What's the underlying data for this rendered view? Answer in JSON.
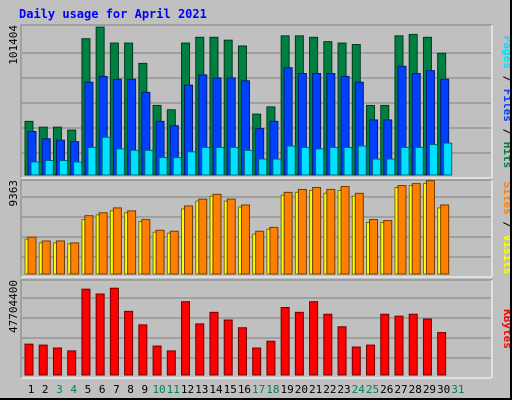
{
  "chart_data": {
    "type": "bar",
    "title": "Daily usage for April 2021",
    "categories": [
      "1",
      "2",
      "3",
      "4",
      "5",
      "6",
      "7",
      "8",
      "9",
      "10",
      "11",
      "12",
      "13",
      "14",
      "15",
      "16",
      "17",
      "18",
      "19",
      "20",
      "21",
      "22",
      "23",
      "24",
      "25",
      "26",
      "27",
      "28",
      "29",
      "30",
      "31"
    ],
    "weekend_days": [
      "3",
      "4",
      "10",
      "11",
      "17",
      "18",
      "24",
      "25",
      "31"
    ],
    "panels": [
      {
        "id": "hits",
        "ylim": [
          0,
          101404
        ],
        "tick_label": "101404",
        "right_label": [
          {
            "text": "Pages",
            "color": "#00e0ff"
          },
          {
            "text": " / ",
            "color": "#000000"
          },
          {
            "text": "Files",
            "color": "#0040ff"
          },
          {
            "text": " / ",
            "color": "#000000"
          },
          {
            "text": "Hits",
            "color": "#008040"
          }
        ],
        "series": [
          {
            "name": "Hits",
            "color": "#008040",
            "values": [
              37000,
              33000,
              33000,
              31000,
              94000,
              102000,
              91000,
              91000,
              77000,
              48000,
              45000,
              91000,
              95000,
              95000,
              93000,
              89000,
              42000,
              47000,
              96000,
              96000,
              95000,
              92000,
              91000,
              90000,
              48000,
              48000,
              96000,
              97000,
              95000,
              84000,
              null
            ]
          },
          {
            "name": "Files",
            "color": "#0040ff",
            "values": [
              30000,
              25000,
              24000,
              23000,
              64000,
              68000,
              66000,
              66000,
              57000,
              37000,
              34000,
              62000,
              69000,
              67000,
              67000,
              65000,
              32000,
              37000,
              74000,
              70000,
              70000,
              70000,
              68000,
              64000,
              38000,
              38000,
              75000,
              70000,
              72000,
              66000,
              null
            ]
          },
          {
            "name": "Pages",
            "color": "#00e0ff",
            "values": [
              9000,
              10000,
              10000,
              9000,
              19000,
              26000,
              18000,
              17000,
              17000,
              12000,
              12000,
              16000,
              19000,
              19000,
              19000,
              17000,
              11000,
              11000,
              20000,
              19000,
              18000,
              19000,
              19000,
              20000,
              11000,
              11000,
              19000,
              19000,
              21000,
              22000,
              null
            ]
          }
        ]
      },
      {
        "id": "visits",
        "ylim": [
          0,
          9363
        ],
        "tick_label": "9363",
        "right_label": [
          {
            "text": "Sites",
            "color": "#ff8000"
          },
          {
            "text": " / ",
            "color": "#000000"
          },
          {
            "text": "Visits",
            "color": "#ffff00"
          }
        ],
        "series": [
          {
            "name": "Visits",
            "color": "#ffff00",
            "values": [
              3600,
              3200,
              3200,
              3100,
              5600,
              6100,
              6500,
              6300,
              5400,
              4300,
              4200,
              6700,
              7500,
              8000,
              7500,
              6900,
              4100,
              4600,
              8100,
              8400,
              8600,
              8300,
              8600,
              8000,
              5300,
              5300,
              8900,
              9100,
              9300,
              6800,
              null
            ]
          },
          {
            "name": "Sites",
            "color": "#ff8000",
            "values": [
              3800,
              3400,
              3400,
              3200,
              6000,
              6300,
              6800,
              6500,
              5600,
              4500,
              4400,
              7000,
              7700,
              8200,
              7700,
              7100,
              4400,
              4800,
              8400,
              8700,
              8900,
              8700,
              9000,
              8300,
              5600,
              5500,
              9100,
              9300,
              9600,
              7100,
              null
            ]
          }
        ]
      },
      {
        "id": "kbytes",
        "ylim": [
          0,
          47704400
        ],
        "tick_label": "47704400",
        "right_label": [
          {
            "text": "KBytes",
            "color": "#ff0000"
          }
        ],
        "series": [
          {
            "name": "KBytes",
            "color": "#ff0000",
            "values": [
              16000000,
              15500000,
              14000000,
              12500000,
              44500000,
              42000000,
              45000000,
              33000000,
              26000000,
              15000000,
              12500000,
              38000000,
              26500000,
              32500000,
              28500000,
              24500000,
              14000000,
              17500000,
              35000000,
              32500000,
              38000000,
              31500000,
              25000000,
              14500000,
              15500000,
              31500000,
              30500000,
              31500000,
              29000000,
              22000000,
              null
            ]
          }
        ]
      }
    ]
  }
}
